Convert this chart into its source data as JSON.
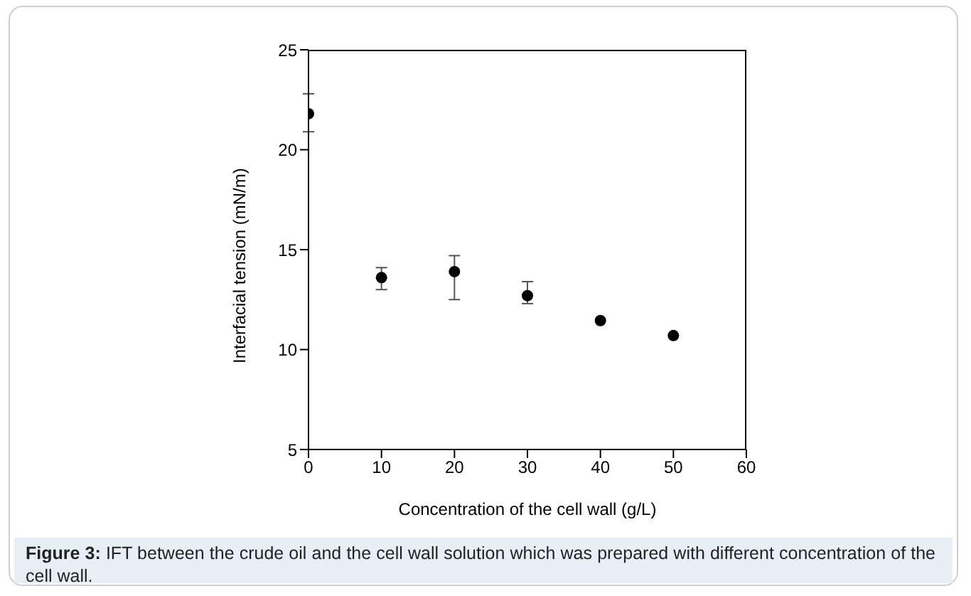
{
  "chart_data": {
    "type": "scatter",
    "xlabel": "Concentration of the cell wall (g/L)",
    "ylabel": "Interfacial tension (mN/m)",
    "x": [
      0,
      10,
      20,
      30,
      40,
      50
    ],
    "values": [
      21.8,
      13.6,
      13.9,
      12.7,
      11.45,
      10.7
    ],
    "errors": [
      [
        20.9,
        22.8
      ],
      [
        13.0,
        14.1
      ],
      [
        12.5,
        14.7
      ],
      [
        12.3,
        13.4
      ],
      null,
      null
    ],
    "color": "#000000",
    "marker": "circle",
    "xlim": [
      0,
      60
    ],
    "xticks": [
      0,
      10,
      20,
      30,
      40,
      50,
      60
    ],
    "ylim": [
      5,
      25
    ],
    "yticks": [
      5,
      10,
      15,
      20,
      25
    ],
    "annotations": [
      "Figure 3: IFT between the crude oil and the cell wall solution which was prepared with different concentration of the cell wall."
    ]
  }
}
